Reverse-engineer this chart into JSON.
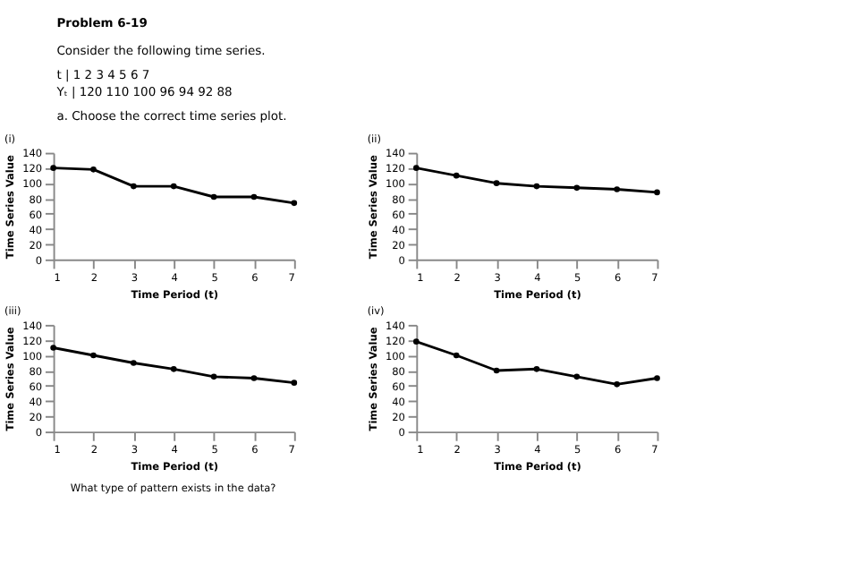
{
  "chart_data": [
    {
      "type": "line",
      "title": "(i)",
      "annotations": [
        "Problem 6-19",
        "Consider the following time series.",
        "t   |   1     2     3     4     5     6     7",
        "Yₜ  |  120  110  100   96    94    92    88",
        "a. Choose the correct time series plot.",
        "What type of pattern exists in the data?"
      ],
      "xlabel": "Time Period (t)",
      "ylabel": "Time Series Value",
      "x": [
        1,
        2,
        3,
        4,
        5,
        6,
        7
      ],
      "values": [
        120,
        118,
        96,
        96,
        82,
        82,
        74
      ],
      "color": "#000000",
      "xlim": [
        1,
        7
      ],
      "xticks": [
        1,
        2,
        3,
        4,
        5,
        6,
        7
      ],
      "ylim": [
        0,
        140
      ],
      "yticks": [
        0,
        20,
        40,
        60,
        80,
        100,
        120,
        140
      ],
      "marker": "circle",
      "grid": false
    },
    {
      "type": "line",
      "title": "(ii)",
      "xlabel": "Time Period (t)",
      "ylabel": "Time Series Value",
      "x": [
        1,
        2,
        3,
        4,
        5,
        6,
        7
      ],
      "values": [
        120,
        110,
        100,
        96,
        94,
        92,
        88
      ],
      "color": "#000000",
      "xlim": [
        1,
        7
      ],
      "xticks": [
        1,
        2,
        3,
        4,
        5,
        6,
        7
      ],
      "ylim": [
        0,
        140
      ],
      "yticks": [
        0,
        20,
        40,
        60,
        80,
        100,
        120,
        140
      ],
      "marker": "circle",
      "grid": false
    },
    {
      "type": "line",
      "title": "(iii)",
      "xlabel": "Time Period (t)",
      "ylabel": "Time Series Value",
      "x": [
        1,
        2,
        3,
        4,
        5,
        6,
        7
      ],
      "values": [
        110,
        100,
        90,
        82,
        72,
        70,
        64
      ],
      "color": "#000000",
      "xlim": [
        1,
        7
      ],
      "xticks": [
        1,
        2,
        3,
        4,
        5,
        6,
        7
      ],
      "ylim": [
        0,
        140
      ],
      "yticks": [
        0,
        20,
        40,
        60,
        80,
        100,
        120,
        140
      ],
      "marker": "circle",
      "grid": false
    },
    {
      "type": "line",
      "title": "(iv)",
      "xlabel": "Time Period (t)",
      "ylabel": "Time Series Value",
      "x": [
        1,
        2,
        3,
        4,
        5,
        6,
        7
      ],
      "values": [
        118,
        100,
        80,
        82,
        72,
        62,
        70
      ],
      "color": "#000000",
      "xlim": [
        1,
        7
      ],
      "xticks": [
        1,
        2,
        3,
        4,
        5,
        6,
        7
      ],
      "ylim": [
        0,
        140
      ],
      "yticks": [
        0,
        20,
        40,
        60,
        80,
        100,
        120,
        140
      ],
      "marker": "circle",
      "grid": false
    }
  ]
}
